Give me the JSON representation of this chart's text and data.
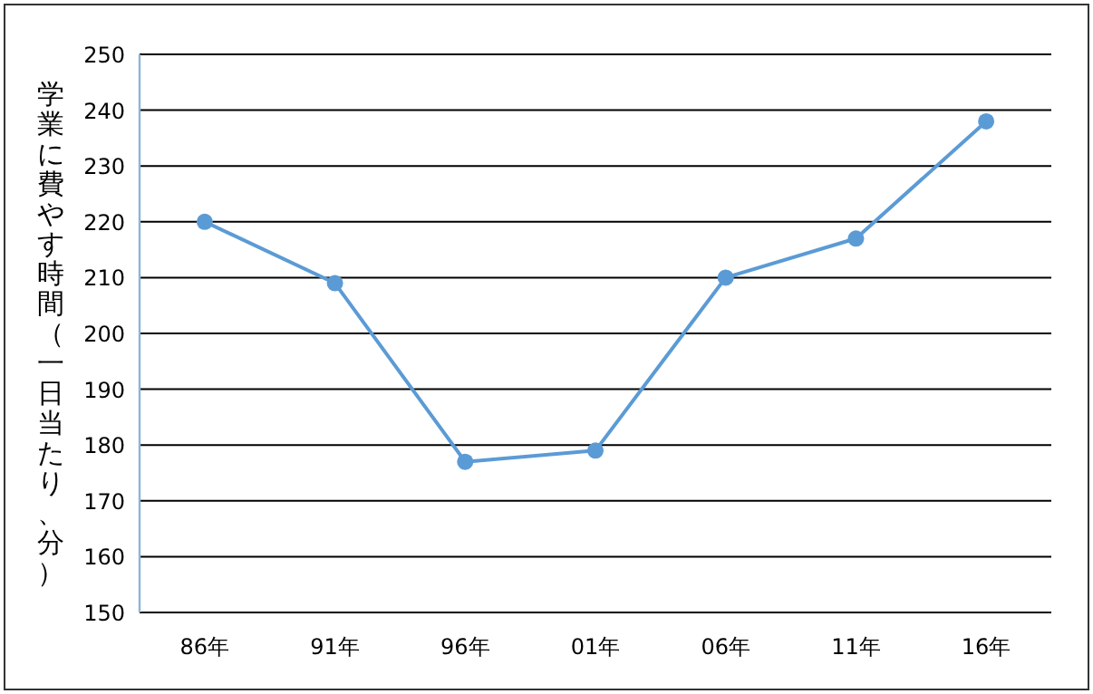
{
  "chart_data": {
    "type": "line",
    "ylabel": "学業に費やす時間（一日当たり、分）",
    "categories": [
      "86年",
      "91年",
      "96年",
      "01年",
      "06年",
      "11年",
      "16年"
    ],
    "series": [
      {
        "color": "#5b9bd5",
        "values": [
          220,
          209,
          177,
          179,
          210,
          217,
          238
        ]
      }
    ],
    "ylim": [
      150,
      250
    ],
    "yticks": [
      150,
      160,
      170,
      180,
      190,
      200,
      210,
      220,
      230,
      240,
      250
    ],
    "grid": "y",
    "marker": "circle",
    "line_style": "solid"
  }
}
